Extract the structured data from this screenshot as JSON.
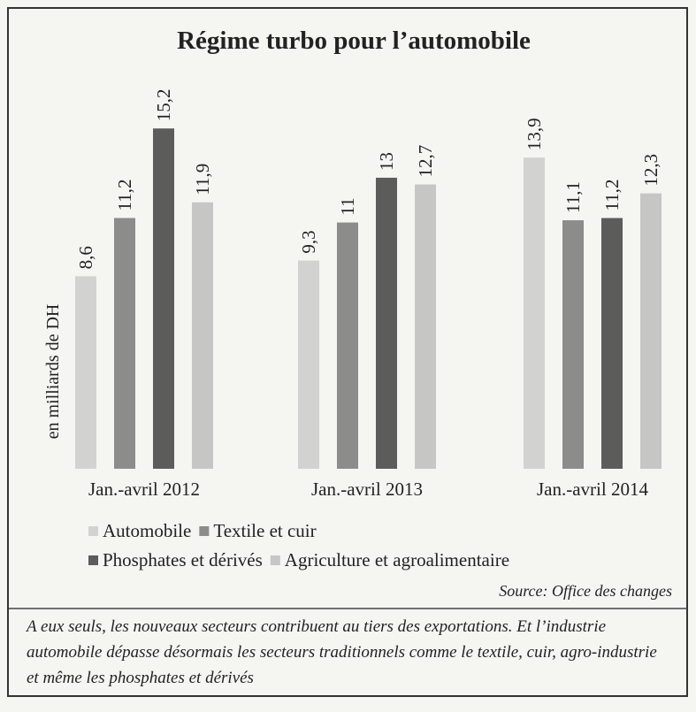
{
  "chart_data": {
    "type": "bar",
    "title": "Régime turbo pour l’automobile",
    "y_label": "en milliards de DH",
    "categories": [
      "Jan.-avril 2012",
      "Jan.-avril 2013",
      "Jan.-avril 2014"
    ],
    "series": [
      {
        "name": "Automobile",
        "color": "#d2d2d0",
        "values": [
          8.6,
          9.3,
          13.9
        ],
        "value_labels": [
          "8,6",
          "9,3",
          "13,9"
        ]
      },
      {
        "name": "Textile et cuir",
        "color": "#8c8c8a",
        "values": [
          11.2,
          11,
          11.1
        ],
        "value_labels": [
          "11,2",
          "11",
          "11,1"
        ]
      },
      {
        "name": "Phosphates et dérivés",
        "color": "#5c5c5a",
        "values": [
          15.2,
          13,
          11.2
        ],
        "value_labels": [
          "15,2",
          "13",
          "11,2"
        ]
      },
      {
        "name": "Agriculture et agroalimentaire",
        "color": "#c6c6c4",
        "values": [
          11.9,
          12.7,
          12.3
        ],
        "value_labels": [
          "11,9",
          "12,7",
          "12,3"
        ]
      }
    ],
    "ylim": [
      0,
      16
    ],
    "source": "Source: Office des changes",
    "caption": "A eux seuls, les nouveaux secteurs contribuent au tiers des exportations. Et l’industrie automobile dépasse désormais les secteurs traditionnels comme le textile, cuir, agro-industrie et même les phosphates et dérivés"
  }
}
